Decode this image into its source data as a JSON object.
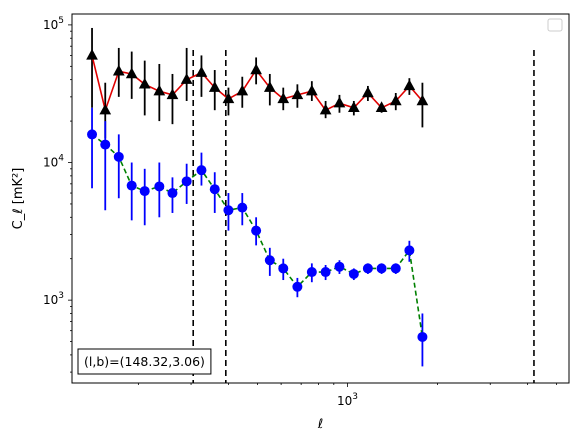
{
  "chart_data": {
    "type": "line",
    "title": "",
    "xlabel": "ℓ",
    "ylabel": "C_ℓ [mK²]",
    "xscale": "log",
    "yscale": "log",
    "xlim": [
      120,
      5500
    ],
    "ylim": [
      250,
      120000
    ],
    "grid": false,
    "legend": {
      "placement": "top-right",
      "entries": []
    },
    "x_ticks": [
      {
        "value": 1000,
        "base": "10",
        "exp": "3"
      }
    ],
    "y_ticks": [
      {
        "value": 1000,
        "base": "10",
        "exp": "3"
      },
      {
        "value": 10000,
        "base": "10",
        "exp": "4"
      },
      {
        "value": 100000,
        "base": "10",
        "exp": "5"
      }
    ],
    "annotation": "(l,b)=(148.32,3.06)",
    "vlines": [
      {
        "x": 305,
        "color": "#000000",
        "style": "dashed"
      },
      {
        "x": 392,
        "color": "#000000",
        "style": "dashed"
      },
      {
        "x": 4200,
        "color": "#000000",
        "style": "dashed"
      }
    ],
    "series": [
      {
        "color": "#e00000",
        "marker": "triangle",
        "linestyle": "solid",
        "marker_color": "#000000",
        "points": [
          [
            140,
            60000,
            25000,
            95000
          ],
          [
            155,
            24000,
            15000,
            38000
          ],
          [
            172,
            46000,
            30000,
            68000
          ],
          [
            190,
            44000,
            29000,
            64000
          ],
          [
            210,
            37000,
            22000,
            55000
          ],
          [
            235,
            33000,
            20000,
            52000
          ],
          [
            260,
            31000,
            19000,
            44000
          ],
          [
            290,
            40000,
            28000,
            68000
          ],
          [
            325,
            45000,
            30000,
            60000
          ],
          [
            360,
            35000,
            24000,
            47000
          ],
          [
            400,
            29000,
            22000,
            35000
          ],
          [
            445,
            33000,
            25000,
            42000
          ],
          [
            495,
            47000,
            37000,
            58000
          ],
          [
            550,
            35000,
            26000,
            44000
          ],
          [
            610,
            29000,
            24000,
            35000
          ],
          [
            680,
            31000,
            25000,
            37000
          ],
          [
            760,
            33000,
            28000,
            39000
          ],
          [
            845,
            24000,
            21000,
            28000
          ],
          [
            940,
            27000,
            23000,
            31000
          ],
          [
            1050,
            25000,
            22000,
            28000
          ],
          [
            1170,
            32000,
            28000,
            36000
          ],
          [
            1300,
            25000,
            23000,
            27000
          ],
          [
            1450,
            28000,
            24000,
            32000
          ],
          [
            1610,
            36000,
            31000,
            41000
          ],
          [
            1780,
            28000,
            18000,
            38000
          ]
        ]
      },
      {
        "color": "#008000",
        "marker": "circle",
        "linestyle": "dashed",
        "marker_color": "#0000ff",
        "points": [
          [
            140,
            16000,
            6500,
            25000
          ],
          [
            155,
            13500,
            4500,
            20000
          ],
          [
            172,
            11000,
            5500,
            16000
          ],
          [
            190,
            6800,
            3800,
            10000
          ],
          [
            210,
            6200,
            3500,
            9000
          ],
          [
            235,
            6700,
            4000,
            10000
          ],
          [
            260,
            6000,
            4300,
            7800
          ],
          [
            290,
            7300,
            5000,
            9800
          ],
          [
            325,
            8800,
            6800,
            11800
          ],
          [
            360,
            6400,
            4300,
            8500
          ],
          [
            400,
            4500,
            3200,
            6000
          ],
          [
            445,
            4700,
            3500,
            6000
          ],
          [
            495,
            3200,
            2500,
            4000
          ],
          [
            550,
            1950,
            1500,
            2400
          ],
          [
            610,
            1700,
            1400,
            2000
          ],
          [
            680,
            1250,
            1050,
            1450
          ],
          [
            760,
            1600,
            1350,
            1850
          ],
          [
            845,
            1600,
            1400,
            1800
          ],
          [
            940,
            1750,
            1550,
            1950
          ],
          [
            1050,
            1550,
            1400,
            1700
          ],
          [
            1170,
            1700,
            1550,
            1850
          ],
          [
            1300,
            1700,
            1550,
            1850
          ],
          [
            1450,
            1700,
            1550,
            1850
          ],
          [
            1610,
            2300,
            1900,
            2700
          ],
          [
            1780,
            540,
            330,
            800
          ]
        ]
      }
    ]
  }
}
